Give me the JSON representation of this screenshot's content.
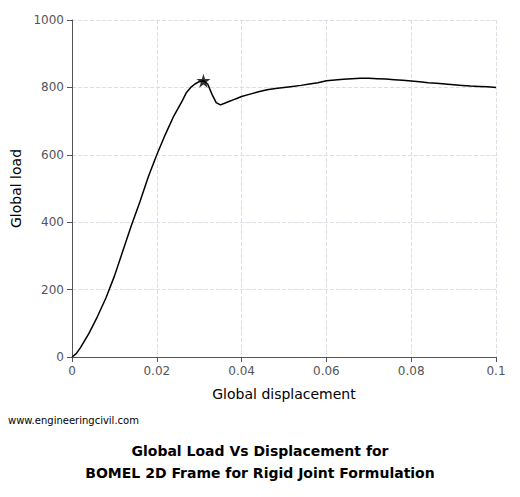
{
  "chart_data": {
    "type": "line",
    "title": "Global Load Vs Displacement for",
    "subtitle": "BOMEL 2D Frame for Rigid Joint Formulation",
    "xlabel": "Global displacement",
    "ylabel": "Global load",
    "x": [
      0.0,
      0.001,
      0.002,
      0.004,
      0.006,
      0.008,
      0.01,
      0.012,
      0.014,
      0.016,
      0.018,
      0.02,
      0.022,
      0.024,
      0.026,
      0.027,
      0.028,
      0.029,
      0.03,
      0.031,
      0.032,
      0.033,
      0.034,
      0.035,
      0.036,
      0.037,
      0.038,
      0.039,
      0.04,
      0.042,
      0.044,
      0.046,
      0.048,
      0.05,
      0.052,
      0.054,
      0.056,
      0.058,
      0.06,
      0.062,
      0.064,
      0.066,
      0.068,
      0.07,
      0.072,
      0.074,
      0.076,
      0.078,
      0.08,
      0.082,
      0.084,
      0.086,
      0.088,
      0.09,
      0.092,
      0.094,
      0.096,
      0.098,
      0.1
    ],
    "values": [
      0,
      10,
      28,
      70,
      120,
      175,
      240,
      315,
      390,
      460,
      535,
      600,
      660,
      715,
      760,
      785,
      800,
      810,
      817,
      820,
      810,
      780,
      755,
      748,
      753,
      758,
      763,
      768,
      773,
      780,
      787,
      793,
      797,
      800,
      803,
      806,
      810,
      814,
      820,
      822,
      824,
      826,
      827,
      827,
      826,
      825,
      823,
      821,
      819,
      817,
      814,
      812,
      810,
      808,
      806,
      804,
      803,
      802,
      800
    ],
    "color": "#000000",
    "xlim": [
      0,
      0.1
    ],
    "ylim": [
      0,
      1000
    ],
    "xticks": [
      0,
      0.02,
      0.04,
      0.06,
      0.08,
      0.1
    ],
    "yticks": [
      0,
      200,
      400,
      600,
      800,
      1000
    ],
    "grid": true,
    "annotations": [
      {
        "text": "www.engineeringcivil.com"
      },
      {
        "x": 0.031,
        "y": 820,
        "marker": "star",
        "color": "#000000"
      }
    ]
  }
}
